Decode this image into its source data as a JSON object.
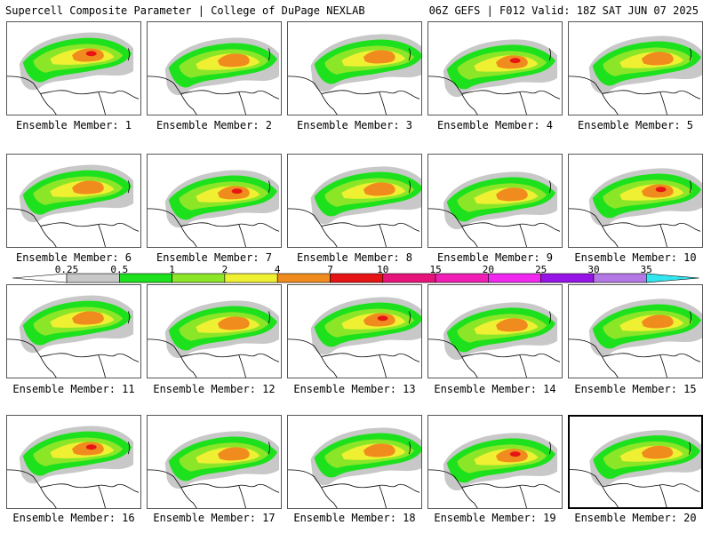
{
  "header": {
    "title": "Supercell Composite Parameter | College of DuPage NEXLAB",
    "run_info": "06Z GEFS | F012 Valid: 18Z SAT JUN 07 2025"
  },
  "legend": {
    "labels": [
      "0.25",
      "0.5",
      "1",
      "2",
      "4",
      "7",
      "10",
      "15",
      "20",
      "25",
      "30",
      "35"
    ],
    "colors": [
      "#c8c8c8",
      "#1ee11e",
      "#8ce628",
      "#f0f032",
      "#f08c1e",
      "#e61414",
      "#e6147a",
      "#f01eb4",
      "#f028f0",
      "#9614e6",
      "#b478e6",
      "#32e6f0"
    ]
  },
  "members": [
    {
      "label": "Ensemble Member: 1"
    },
    {
      "label": "Ensemble Member: 2"
    },
    {
      "label": "Ensemble Member: 3"
    },
    {
      "label": "Ensemble Member: 4"
    },
    {
      "label": "Ensemble Member: 5"
    },
    {
      "label": "Ensemble Member: 6"
    },
    {
      "label": "Ensemble Member: 7"
    },
    {
      "label": "Ensemble Member: 8"
    },
    {
      "label": "Ensemble Member: 9"
    },
    {
      "label": "Ensemble Member: 10"
    },
    {
      "label": "Ensemble Member: 11"
    },
    {
      "label": "Ensemble Member: 12"
    },
    {
      "label": "Ensemble Member: 13"
    },
    {
      "label": "Ensemble Member: 14"
    },
    {
      "label": "Ensemble Member: 15"
    },
    {
      "label": "Ensemble Member: 16"
    },
    {
      "label": "Ensemble Member: 17"
    },
    {
      "label": "Ensemble Member: 18"
    },
    {
      "label": "Ensemble Member: 19"
    },
    {
      "label": "Ensemble Member: 20"
    }
  ]
}
